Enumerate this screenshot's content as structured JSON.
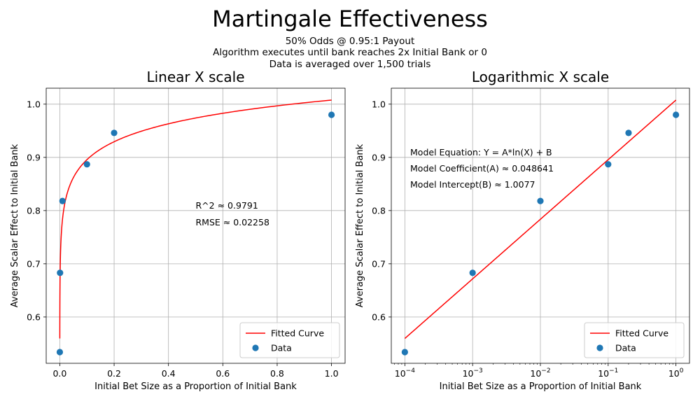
{
  "figure": {
    "title": "Martingale Effectiveness",
    "subtitle_lines": [
      "50% Odds @ 0.95:1 Payout",
      "Algorithm executes until bank reaches 2x Initial Bank or 0",
      "Data is averaged over 1,500 trials"
    ]
  },
  "chart_data": [
    {
      "type": "scatter",
      "title": "Linear X scale",
      "xlabel": "Initial Bet Size as a Proportion of Initial Bank",
      "ylabel": "Average Scalar Effect to Initial Bank",
      "x_scale": "linear",
      "xlim": [
        -0.05,
        1.05
      ],
      "ylim": [
        0.513,
        1.03
      ],
      "x_ticks": [
        0,
        0.2,
        0.4,
        0.6,
        0.8,
        1
      ],
      "x_tick_labels": [
        "0.0",
        "0.2",
        "0.4",
        "0.6",
        "0.8",
        "1.0"
      ],
      "y_ticks": [
        0.6,
        0.7,
        0.8,
        0.9,
        1.0
      ],
      "y_tick_labels": [
        "0.6",
        "0.7",
        "0.8",
        "0.9",
        "1.0"
      ],
      "grid": true,
      "legend_position": "bottom-right",
      "series": [
        {
          "name": "Fitted Curve",
          "kind": "line",
          "color": "#ff0000",
          "model": {
            "a": 0.048641,
            "b": 1.0077,
            "x_min": 0.0001,
            "x_max": 1
          }
        },
        {
          "name": "Data",
          "kind": "scatter",
          "color": "#1f77b4",
          "x": [
            0.0001,
            0.001,
            0.01,
            0.1,
            0.2,
            1
          ],
          "y": [
            0.534,
            0.683,
            0.818,
            0.887,
            0.946,
            0.98
          ]
        }
      ],
      "annotations": [
        {
          "text": "R^2 ≈ 0.9791",
          "x": 0.5,
          "y": 0.81
        },
        {
          "text": "RMSE ≈ 0.02258",
          "x": 0.5,
          "y": 0.779
        }
      ]
    },
    {
      "type": "scatter",
      "title": "Logarithmic X scale",
      "xlabel": "Initial Bet Size as a Proportion of Initial Bank",
      "ylabel": "Average Scalar Effect to Initial Bank",
      "x_scale": "log",
      "xlim": [
        6.31e-05,
        1.585
      ],
      "ylim": [
        0.513,
        1.03
      ],
      "x_ticks": [
        0.0001,
        0.001,
        0.01,
        0.1,
        1
      ],
      "x_tick_labels": [
        {
          "base": "10",
          "exp": "−4"
        },
        {
          "base": "10",
          "exp": "−3"
        },
        {
          "base": "10",
          "exp": "−2"
        },
        {
          "base": "10",
          "exp": "−1"
        },
        {
          "base": "10",
          "exp": "0"
        }
      ],
      "y_ticks": [
        0.6,
        0.7,
        0.8,
        0.9,
        1.0
      ],
      "y_tick_labels": [
        "0.6",
        "0.7",
        "0.8",
        "0.9",
        "1.0"
      ],
      "grid": true,
      "legend_position": "bottom-right",
      "series": [
        {
          "name": "Fitted Curve",
          "kind": "line",
          "color": "#ff0000",
          "model": {
            "a": 0.048641,
            "b": 1.0077,
            "x_min": 0.0001,
            "x_max": 1
          }
        },
        {
          "name": "Data",
          "kind": "scatter",
          "color": "#1f77b4",
          "x": [
            0.0001,
            0.001,
            0.01,
            0.1,
            0.2,
            1
          ],
          "y": [
            0.534,
            0.683,
            0.818,
            0.887,
            0.946,
            0.98
          ]
        }
      ],
      "annotations": [
        {
          "text": "Model Equation: Y = A*ln(X) + B",
          "x": 0.00012,
          "y": 0.91
        },
        {
          "text": "Model Coefficient(A) ≈ 0.048641",
          "x": 0.00012,
          "y": 0.88
        },
        {
          "text": "Model Intercept(B) ≈ 1.0077",
          "x": 0.00012,
          "y": 0.85
        }
      ]
    }
  ]
}
